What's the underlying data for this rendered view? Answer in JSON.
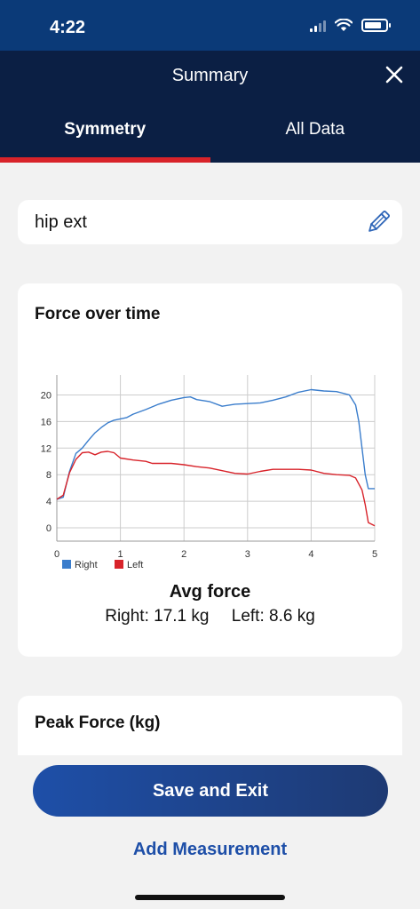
{
  "status_bar": {
    "time": "4:22"
  },
  "header": {
    "title": "Summary",
    "tabs": [
      {
        "label": "Symmetry",
        "active": true
      },
      {
        "label": "All Data",
        "active": false
      }
    ],
    "accent_color": "#d8232a"
  },
  "exercise": {
    "name": "hip ext"
  },
  "force_card": {
    "title": "Force over time",
    "avg_title": "Avg force",
    "avg_right": "Right: 17.1 kg",
    "avg_left": "Left: 8.6 kg"
  },
  "chart_data": {
    "type": "line",
    "title": "Force over time",
    "xlabel": "",
    "ylabel": "",
    "xlim": [
      0,
      5
    ],
    "ylim": [
      -2,
      23
    ],
    "x_ticks": [
      "0",
      "1",
      "2",
      "3",
      "4",
      "5"
    ],
    "y_ticks": [
      "0",
      "4",
      "8",
      "12",
      "16",
      "20"
    ],
    "grid": true,
    "legend_position": "bottom-left",
    "series": [
      {
        "name": "Right",
        "color": "#3a7dcc",
        "points": [
          [
            0,
            4.3
          ],
          [
            0.1,
            4.6
          ],
          [
            0.2,
            8.5
          ],
          [
            0.3,
            11.2
          ],
          [
            0.4,
            12.0
          ],
          [
            0.5,
            13.2
          ],
          [
            0.6,
            14.3
          ],
          [
            0.7,
            15.1
          ],
          [
            0.8,
            15.8
          ],
          [
            0.9,
            16.2
          ],
          [
            1.0,
            16.4
          ],
          [
            1.1,
            16.6
          ],
          [
            1.2,
            17.1
          ],
          [
            1.4,
            17.8
          ],
          [
            1.6,
            18.6
          ],
          [
            1.8,
            19.2
          ],
          [
            2.0,
            19.6
          ],
          [
            2.1,
            19.7
          ],
          [
            2.2,
            19.3
          ],
          [
            2.4,
            19.0
          ],
          [
            2.6,
            18.3
          ],
          [
            2.8,
            18.6
          ],
          [
            3.0,
            18.7
          ],
          [
            3.2,
            18.8
          ],
          [
            3.4,
            19.2
          ],
          [
            3.6,
            19.7
          ],
          [
            3.8,
            20.4
          ],
          [
            4.0,
            20.8
          ],
          [
            4.2,
            20.6
          ],
          [
            4.4,
            20.5
          ],
          [
            4.6,
            20.0
          ],
          [
            4.7,
            18.5
          ],
          [
            4.75,
            16.0
          ],
          [
            4.8,
            12.0
          ],
          [
            4.85,
            8.0
          ],
          [
            4.9,
            5.9
          ],
          [
            5.0,
            5.9
          ]
        ]
      },
      {
        "name": "Left",
        "color": "#d8232a",
        "points": [
          [
            0,
            4.3
          ],
          [
            0.1,
            4.9
          ],
          [
            0.2,
            8.3
          ],
          [
            0.3,
            10.3
          ],
          [
            0.4,
            11.3
          ],
          [
            0.5,
            11.4
          ],
          [
            0.6,
            11.0
          ],
          [
            0.7,
            11.4
          ],
          [
            0.8,
            11.5
          ],
          [
            0.9,
            11.3
          ],
          [
            1.0,
            10.5
          ],
          [
            1.2,
            10.2
          ],
          [
            1.4,
            10.0
          ],
          [
            1.5,
            9.7
          ],
          [
            1.8,
            9.7
          ],
          [
            2.0,
            9.5
          ],
          [
            2.2,
            9.2
          ],
          [
            2.4,
            9.0
          ],
          [
            2.6,
            8.6
          ],
          [
            2.8,
            8.2
          ],
          [
            3.0,
            8.1
          ],
          [
            3.2,
            8.5
          ],
          [
            3.4,
            8.8
          ],
          [
            3.6,
            8.8
          ],
          [
            3.8,
            8.8
          ],
          [
            4.0,
            8.7
          ],
          [
            4.2,
            8.2
          ],
          [
            4.4,
            8.0
          ],
          [
            4.6,
            7.9
          ],
          [
            4.7,
            7.5
          ],
          [
            4.8,
            5.7
          ],
          [
            4.85,
            3.5
          ],
          [
            4.9,
            0.8
          ],
          [
            5.0,
            0.3
          ]
        ]
      }
    ]
  },
  "peak_card": {
    "title": "Peak Force (kg)"
  },
  "actions": {
    "save_label": "Save and Exit",
    "add_label": "Add Measurement"
  }
}
